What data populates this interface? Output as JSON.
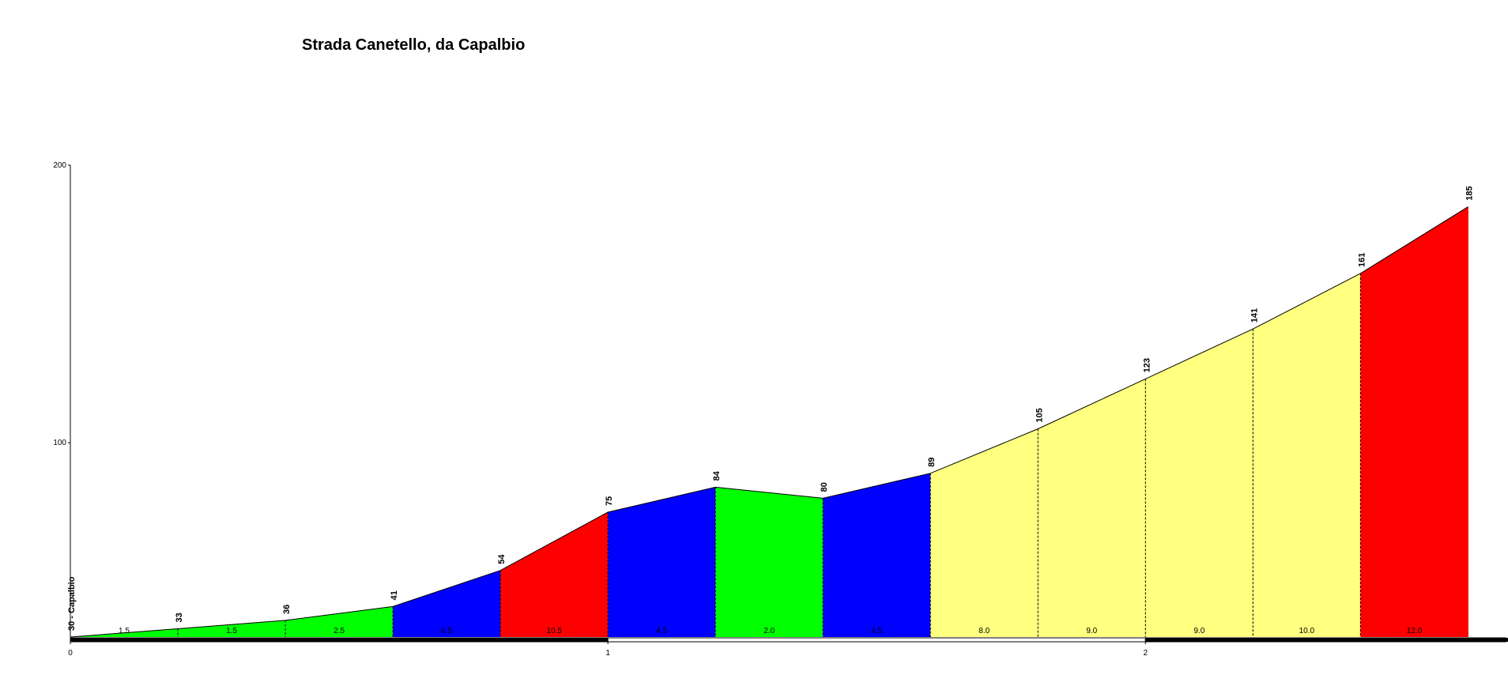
{
  "chart_data": {
    "type": "profile",
    "title": "Strada Canetello, da Capalbio",
    "x": [
      0,
      0.2,
      0.4,
      0.6,
      0.8,
      1.0,
      1.2,
      1.4,
      1.6,
      1.8,
      2.0,
      2.2,
      2.4,
      2.6
    ],
    "values": [
      30,
      33,
      36,
      41,
      54,
      75,
      84,
      80,
      89,
      105,
      123,
      141,
      161,
      185
    ],
    "value_labels": [
      "30 - Capalbio",
      "33",
      "36",
      "41",
      "54",
      "75",
      "84",
      "80",
      "89",
      "105",
      "123",
      "141",
      "161",
      "185"
    ],
    "segment_labels": [
      "1.5",
      "1.5",
      "2.5",
      "6.5",
      "10.5",
      "4.5",
      "2.0",
      "4.5",
      "8.0",
      "9.0",
      "9.0",
      "10.0",
      "12.0"
    ],
    "segment_colors": [
      "#00ff00",
      "#00ff00",
      "#00ff00",
      "#0000ff",
      "#ff0000",
      "#0000ff",
      "#00ff00",
      "#0000ff",
      "#ffff80",
      "#ffff80",
      "#ffff80",
      "#ffff80",
      "#ff0000"
    ],
    "xlim": [
      0,
      2.67
    ],
    "ylim": [
      30,
      200
    ],
    "xticks": [
      0,
      1,
      2
    ],
    "yticks": [
      100,
      200
    ]
  }
}
